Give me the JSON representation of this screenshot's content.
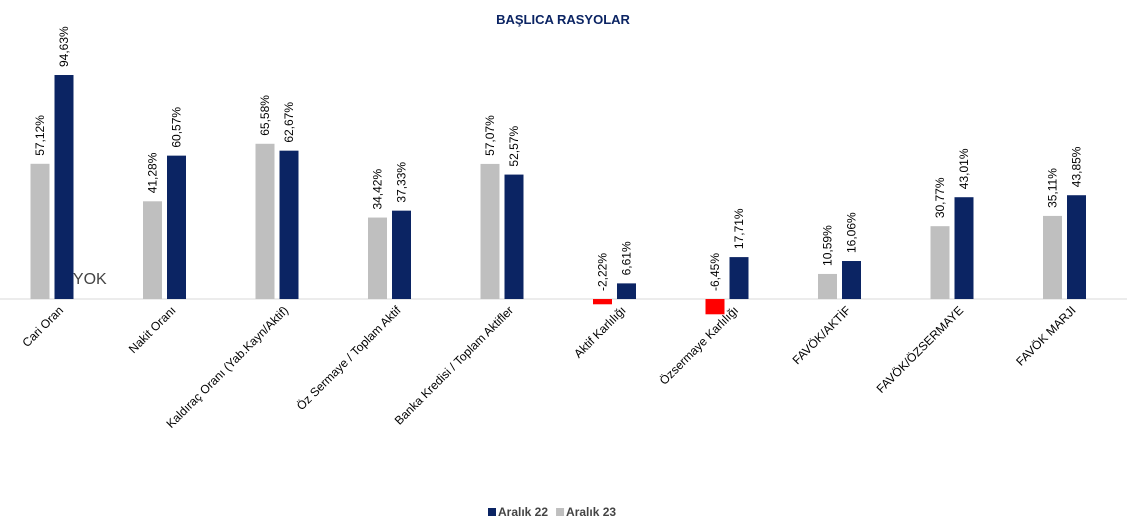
{
  "chart_data": {
    "type": "bar",
    "title": "BAŞLICA RASYOLAR",
    "categories": [
      "Cari Oran",
      "Nakit Oranı",
      "Kaldıraç Oranı (Yab.Kayn/Aktif)",
      "Öz Sermaye / Toplam Aktif",
      "Banka Kredisi / Toplam Aktifler",
      "Aktif Karlılığı",
      "Özsermaye Karlılığı",
      "FAVÖK/AKTİF",
      "FAVÖK/ÖZSERMAYE",
      "FAVÖK MARJI"
    ],
    "series": [
      {
        "name": "Aralık 22",
        "color": "#0b2463",
        "values": [
          94.63,
          60.57,
          62.67,
          37.33,
          52.57,
          6.61,
          17.71,
          16.06,
          43.01,
          43.85
        ],
        "value_labels": [
          "94,63%",
          "60,57%",
          "62,67%",
          "37,33%",
          "52,57%",
          "6,61%",
          "17,71%",
          "16,06%",
          "43,01%",
          "43,85%"
        ]
      },
      {
        "name": "Aralık 23",
        "color": "#bfbfbf",
        "negative_color": "#ff0000",
        "values": [
          57.12,
          41.28,
          65.58,
          34.42,
          57.07,
          -2.22,
          -6.45,
          10.59,
          30.77,
          35.11
        ],
        "value_labels": [
          "57,12%",
          "41,28%",
          "65,58%",
          "34,42%",
          "57,07%",
          "-2,22%",
          "-6,45%",
          "10,59%",
          "30,77%",
          "35,11%"
        ]
      }
    ],
    "annotations": [
      "#YOK"
    ],
    "ylim": [
      -10,
      100
    ],
    "grid": false,
    "legend": "bottom"
  }
}
